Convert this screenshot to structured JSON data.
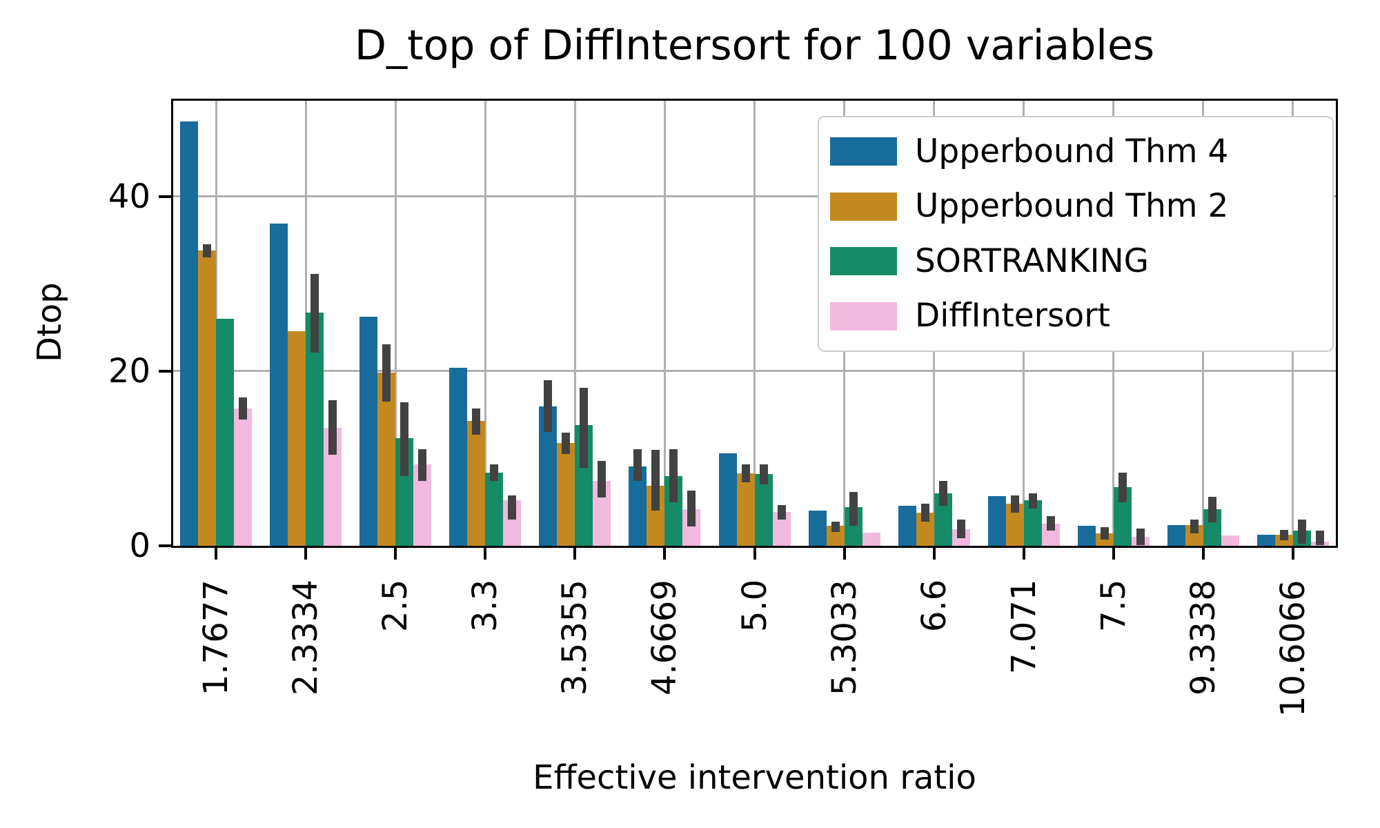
{
  "chart_data": {
    "type": "bar",
    "title": "D_top of DiffIntersort for 100 variables",
    "xlabel": "Effective intervention ratio",
    "ylabel": "Dtop",
    "categories": [
      "1.7677",
      "2.3334",
      "2.5",
      "3.3",
      "3.5355",
      "4.6669",
      "5.0",
      "5.3033",
      "6.6",
      "7.071",
      "7.5",
      "9.3338",
      "10.6066"
    ],
    "yticks": [
      0,
      20,
      40
    ],
    "ylim": [
      0,
      51.2
    ],
    "grid": true,
    "legend_position": "upper right",
    "error_color": "#424242",
    "series": [
      {
        "name": "Upperbound Thm 4",
        "color": "#176c9c",
        "values": [
          48.6,
          36.9,
          26.2,
          20.4,
          16.0,
          9.1,
          10.6,
          4.0,
          4.6,
          5.7,
          2.3,
          2.4,
          1.3
        ],
        "errors": [
          null,
          null,
          null,
          null,
          [
            13.0,
            19.0
          ],
          [
            7.4,
            11.1
          ],
          null,
          null,
          null,
          null,
          null,
          null,
          null
        ]
      },
      {
        "name": "Upperbound Thm 2",
        "color": "#c38920",
        "values": [
          33.8,
          24.6,
          19.8,
          14.3,
          11.8,
          6.9,
          8.3,
          2.3,
          3.8,
          4.8,
          1.4,
          2.4,
          1.3
        ],
        "errors": [
          [
            33.0,
            34.5
          ],
          null,
          [
            16.5,
            23.1
          ],
          [
            12.7,
            15.7
          ],
          [
            10.5,
            13.0
          ],
          [
            4.0,
            11.0
          ],
          [
            7.3,
            9.3
          ],
          [
            1.6,
            2.8
          ],
          [
            2.8,
            4.8
          ],
          [
            3.8,
            5.8
          ],
          [
            0.7,
            2.1
          ],
          [
            1.4,
            3.0
          ],
          [
            0.6,
            1.8
          ]
        ]
      },
      {
        "name": "SORTRANKING",
        "color": "#168b68",
        "values": [
          26.0,
          26.7,
          12.3,
          8.4,
          13.8,
          8.0,
          8.2,
          4.4,
          6.0,
          5.2,
          6.7,
          4.2,
          1.7
        ],
        "errors": [
          null,
          [
            22.1,
            31.1
          ],
          [
            8.0,
            16.4
          ],
          [
            7.4,
            9.3
          ],
          [
            8.9,
            18.1
          ],
          [
            5.0,
            11.1
          ],
          [
            7.0,
            9.3
          ],
          [
            2.3,
            6.2
          ],
          [
            4.6,
            7.4
          ],
          [
            4.3,
            6.0
          ],
          [
            5.0,
            8.4
          ],
          [
            2.7,
            5.6
          ],
          [
            0.2,
            3.0
          ]
        ]
      },
      {
        "name": "DiffIntersort",
        "color": "#f1b9de",
        "values": [
          15.7,
          13.5,
          9.3,
          5.2,
          7.4,
          4.2,
          3.9,
          1.5,
          1.9,
          2.5,
          1.0,
          1.2,
          0.5
        ],
        "errors": [
          [
            14.5,
            17.0
          ],
          [
            10.4,
            16.7
          ],
          [
            7.4,
            11.1
          ],
          [
            3.0,
            5.8
          ],
          [
            5.5,
            9.7
          ],
          [
            2.2,
            6.3
          ],
          [
            3.0,
            4.7
          ],
          null,
          [
            0.9,
            3.0
          ],
          [
            1.7,
            3.4
          ],
          [
            0.1,
            2.0
          ],
          null,
          [
            0.1,
            1.7
          ]
        ]
      }
    ]
  }
}
